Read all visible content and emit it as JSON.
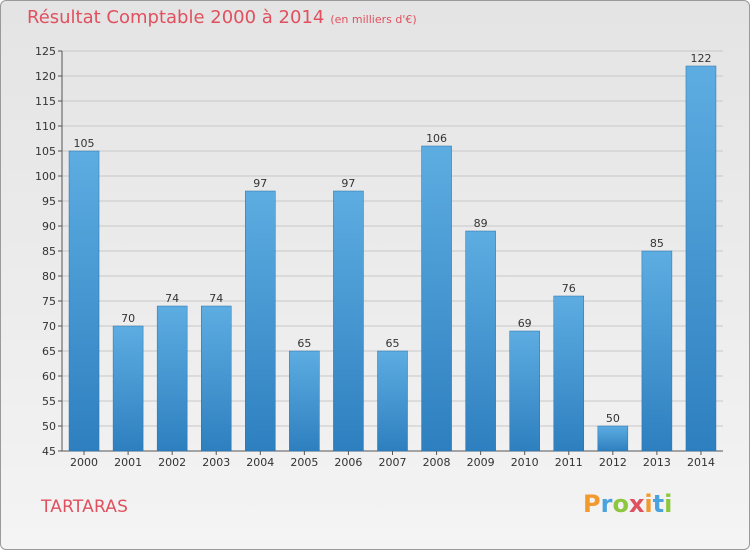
{
  "title": "Résultat Comptable 2000 à 2014",
  "subtitle": "(en milliers d'€)",
  "commune": "TARTARAS",
  "logo": {
    "letters": [
      {
        "char": "P",
        "color": "#f29a2e"
      },
      {
        "char": "r",
        "color": "#4aa3df"
      },
      {
        "char": "o",
        "color": "#8dc63f"
      },
      {
        "char": "x",
        "color": "#e0505e"
      },
      {
        "char": "i",
        "color": "#f29a2e"
      },
      {
        "char": "t",
        "color": "#4aa3df"
      },
      {
        "char": "i",
        "color": "#8dc63f"
      }
    ]
  },
  "colors": {
    "bar_top": "#5dade2",
    "bar_bottom": "#2e7fbf",
    "accent": "#e0505e"
  },
  "chart_data": {
    "type": "bar",
    "title": "Résultat Comptable 2000 à 2014",
    "subtitle": "(en milliers d'€)",
    "categories": [
      "2000",
      "2001",
      "2002",
      "2003",
      "2004",
      "2005",
      "2006",
      "2007",
      "2008",
      "2009",
      "2010",
      "2011",
      "2012",
      "2013",
      "2014"
    ],
    "values": [
      105,
      70,
      74,
      74,
      97,
      65,
      97,
      65,
      106,
      89,
      69,
      76,
      50,
      85,
      122
    ],
    "ylim": [
      45,
      125
    ],
    "yticks": [
      45,
      50,
      55,
      60,
      65,
      70,
      75,
      80,
      85,
      90,
      95,
      100,
      105,
      110,
      115,
      120,
      125
    ],
    "grid": true,
    "xlabel": "",
    "ylabel": ""
  }
}
